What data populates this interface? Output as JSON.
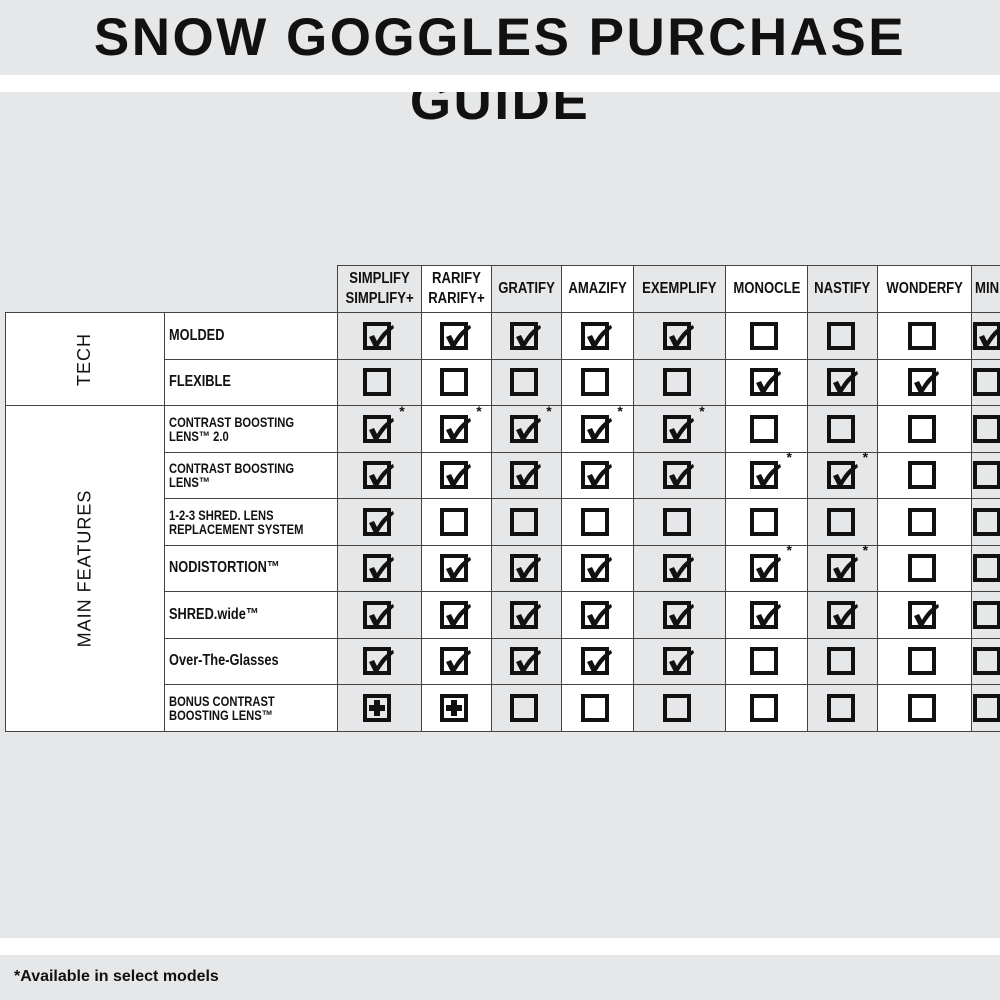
{
  "title": "SNOW GOGGLES PURCHASE GUIDE",
  "footnote": "*Available in select models",
  "colors": {
    "background": "#e6e7e8",
    "alt_column": "#ffffff",
    "ink": "#111111"
  },
  "columns": [
    "SIMPLIFY\nSIMPLIFY+",
    "RARIFY\nRARIFY+",
    "GRATIFY",
    "AMAZIFY",
    "EXEMPLIFY",
    "MONOCLE",
    "NASTIFY",
    "WONDERFY",
    "MINI"
  ],
  "groups": [
    {
      "label": "TECH",
      "rows": [
        {
          "feature": "MOLDED",
          "values": [
            "check",
            "check",
            "check",
            "check",
            "check",
            "empty",
            "empty",
            "empty",
            "check"
          ]
        },
        {
          "feature": "FLEXIBLE",
          "values": [
            "empty",
            "empty",
            "empty",
            "empty",
            "empty",
            "check",
            "check",
            "check",
            "empty"
          ]
        }
      ]
    },
    {
      "label": "MAIN FEATURES",
      "rows": [
        {
          "feature": "CONTRAST BOOSTING\nLENS™ 2.0",
          "values": [
            "check*",
            "check*",
            "check*",
            "check*",
            "check*",
            "empty",
            "empty",
            "empty",
            "empty"
          ]
        },
        {
          "feature": "CONTRAST BOOSTING\nLENS™",
          "values": [
            "check",
            "check",
            "check",
            "check",
            "check",
            "check*",
            "check*",
            "empty",
            "empty"
          ]
        },
        {
          "feature": "1-2-3 SHRED. LENS\nREPLACEMENT SYSTEM",
          "values": [
            "check",
            "empty",
            "empty",
            "empty",
            "empty",
            "empty",
            "empty",
            "empty",
            "empty"
          ]
        },
        {
          "feature": "NODISTORTION™",
          "values": [
            "check",
            "check",
            "check",
            "check",
            "check",
            "check*",
            "check*",
            "empty",
            "empty"
          ]
        },
        {
          "feature": "SHRED.wide™",
          "values": [
            "check",
            "check",
            "check",
            "check",
            "check",
            "check",
            "check",
            "check",
            "empty"
          ]
        },
        {
          "feature": "Over-The-Glasses",
          "values": [
            "check",
            "check",
            "check",
            "check",
            "check",
            "empty",
            "empty",
            "empty",
            "empty"
          ]
        },
        {
          "feature": "BONUS CONTRAST\nBOOSTING LENS™",
          "values": [
            "plus",
            "plus",
            "empty",
            "empty",
            "empty",
            "empty",
            "empty",
            "empty",
            "empty"
          ]
        }
      ]
    }
  ],
  "asterisk": "*"
}
